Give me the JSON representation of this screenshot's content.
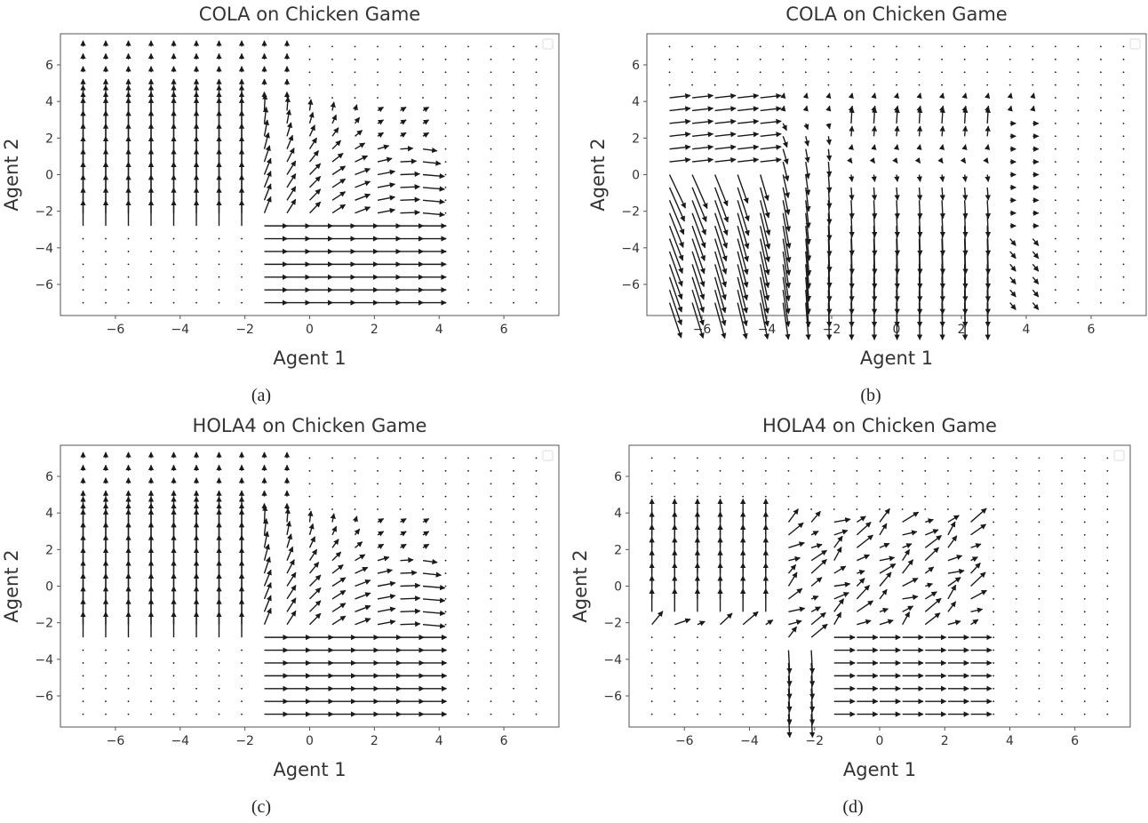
{
  "figure": {
    "captions": [
      "(a)",
      "(b)",
      "(c)",
      "(d)"
    ]
  },
  "chart_data": [
    {
      "type": "quiver",
      "title": "COLA on Chicken Game",
      "xlabel": "Agent 1",
      "ylabel": "Agent 2",
      "xlim": [
        -7.7,
        7.7
      ],
      "ylim": [
        -7.7,
        7.7
      ],
      "xticks": [
        -6,
        -4,
        -2,
        0,
        2,
        4,
        6
      ],
      "yticks": [
        -6,
        -4,
        -2,
        0,
        2,
        4,
        6
      ],
      "grid_range": [
        -7,
        7
      ],
      "grid_count": 21,
      "legend": "top-right (empty box)",
      "field": "cola_a"
    },
    {
      "type": "quiver",
      "title": "COLA on Chicken Game",
      "xlabel": "Agent 1",
      "ylabel": "Agent 2",
      "xlim": [
        -7.7,
        7.7
      ],
      "ylim": [
        -7.7,
        7.7
      ],
      "xticks": [
        -6,
        -4,
        -2,
        0,
        2,
        4,
        6
      ],
      "yticks": [
        -6,
        -4,
        -2,
        0,
        2,
        4,
        6
      ],
      "grid_range": [
        -7,
        7
      ],
      "grid_count": 21,
      "legend": "top-right (empty box)",
      "field": "cola_b"
    },
    {
      "type": "quiver",
      "title": "HOLA4 on Chicken Game",
      "xlabel": "Agent 1",
      "ylabel": "Agent 2",
      "xlim": [
        -7.7,
        7.7
      ],
      "ylim": [
        -7.7,
        7.7
      ],
      "xticks": [
        -6,
        -4,
        -2,
        0,
        2,
        4,
        6
      ],
      "yticks": [
        -6,
        -4,
        -2,
        0,
        2,
        4,
        6
      ],
      "grid_range": [
        -7,
        7
      ],
      "grid_count": 21,
      "legend": "top-right (empty box)",
      "field": "hola_c"
    },
    {
      "type": "quiver",
      "title": "HOLA4 on Chicken Game",
      "xlabel": "Agent 1",
      "ylabel": "Agent 2",
      "xlim": [
        -7.7,
        7.7
      ],
      "ylim": [
        -7.7,
        7.7
      ],
      "xticks": [
        -6,
        -4,
        -2,
        0,
        2,
        4,
        6
      ],
      "yticks": [
        -6,
        -4,
        -2,
        0,
        2,
        4,
        6
      ],
      "grid_range": [
        -7,
        7
      ],
      "grid_count": 21,
      "legend": "top-right (empty box)",
      "field": "hola_d"
    }
  ],
  "colors": {
    "arrow": "#1a1a1a",
    "axes_frame": "#555555",
    "text": "#333333",
    "legend_box": "#dddddd"
  }
}
